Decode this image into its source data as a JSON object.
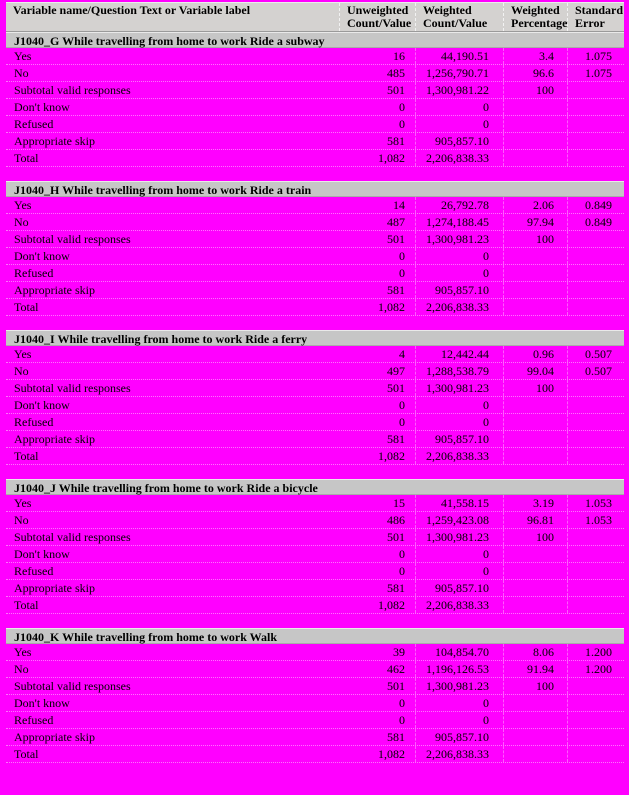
{
  "page": {
    "background_color": "#ff00ff",
    "header_bar_color": "#d4d2d0",
    "section_bar_color": "#c6c6c6",
    "text_color": "#000000"
  },
  "table": {
    "header": {
      "col_label": "Variable name/Question Text or Variable label",
      "columns": [
        {
          "line1": "Unweighted",
          "line2": "Count/Value"
        },
        {
          "line1": "Weighted",
          "line2": "Count/Value"
        },
        {
          "line1": "Weighted",
          "line2": "Percentage"
        },
        {
          "line1": "Standard",
          "line2": "Error"
        }
      ]
    },
    "sections": [
      {
        "variable": "J1040_G",
        "title": "J1040_G While travelling from home to work Ride a subway",
        "rows": [
          {
            "label": "Yes",
            "unweighted": "16",
            "weighted": "44,190.51",
            "percentage": "3.4",
            "stderr": "1.075"
          },
          {
            "label": "No",
            "unweighted": "485",
            "weighted": "1,256,790.71",
            "percentage": "96.6",
            "stderr": "1.075"
          },
          {
            "label": "Subtotal valid responses",
            "unweighted": "501",
            "weighted": "1,300,981.22",
            "percentage": "100",
            "stderr": ""
          },
          {
            "label": "Don't know",
            "unweighted": "0",
            "weighted": "0",
            "percentage": "",
            "stderr": ""
          },
          {
            "label": "Refused",
            "unweighted": "0",
            "weighted": "0",
            "percentage": "",
            "stderr": ""
          },
          {
            "label": "Appropriate skip",
            "unweighted": "581",
            "weighted": "905,857.10",
            "percentage": "",
            "stderr": ""
          },
          {
            "label": "Total",
            "unweighted": "1,082",
            "weighted": "2,206,838.33",
            "percentage": "",
            "stderr": ""
          }
        ]
      },
      {
        "variable": "J1040_H",
        "title": "J1040_H While travelling from home to work Ride a train",
        "rows": [
          {
            "label": "Yes",
            "unweighted": "14",
            "weighted": "26,792.78",
            "percentage": "2.06",
            "stderr": "0.849"
          },
          {
            "label": "No",
            "unweighted": "487",
            "weighted": "1,274,188.45",
            "percentage": "97.94",
            "stderr": "0.849"
          },
          {
            "label": "Subtotal valid responses",
            "unweighted": "501",
            "weighted": "1,300,981.23",
            "percentage": "100",
            "stderr": ""
          },
          {
            "label": "Don't know",
            "unweighted": "0",
            "weighted": "0",
            "percentage": "",
            "stderr": ""
          },
          {
            "label": "Refused",
            "unweighted": "0",
            "weighted": "0",
            "percentage": "",
            "stderr": ""
          },
          {
            "label": "Appropriate skip",
            "unweighted": "581",
            "weighted": "905,857.10",
            "percentage": "",
            "stderr": ""
          },
          {
            "label": "Total",
            "unweighted": "1,082",
            "weighted": "2,206,838.33",
            "percentage": "",
            "stderr": ""
          }
        ]
      },
      {
        "variable": "J1040_I",
        "title": "J1040_I While travelling from home to work Ride a ferry",
        "rows": [
          {
            "label": "Yes",
            "unweighted": "4",
            "weighted": "12,442.44",
            "percentage": "0.96",
            "stderr": "0.507"
          },
          {
            "label": "No",
            "unweighted": "497",
            "weighted": "1,288,538.79",
            "percentage": "99.04",
            "stderr": "0.507"
          },
          {
            "label": "Subtotal valid responses",
            "unweighted": "501",
            "weighted": "1,300,981.23",
            "percentage": "100",
            "stderr": ""
          },
          {
            "label": "Don't know",
            "unweighted": "0",
            "weighted": "0",
            "percentage": "",
            "stderr": ""
          },
          {
            "label": "Refused",
            "unweighted": "0",
            "weighted": "0",
            "percentage": "",
            "stderr": ""
          },
          {
            "label": "Appropriate skip",
            "unweighted": "581",
            "weighted": "905,857.10",
            "percentage": "",
            "stderr": ""
          },
          {
            "label": "Total",
            "unweighted": "1,082",
            "weighted": "2,206,838.33",
            "percentage": "",
            "stderr": ""
          }
        ]
      },
      {
        "variable": "J1040_J",
        "title": "J1040_J While travelling from home to work Ride a bicycle",
        "rows": [
          {
            "label": "Yes",
            "unweighted": "15",
            "weighted": "41,558.15",
            "percentage": "3.19",
            "stderr": "1.053"
          },
          {
            "label": "No",
            "unweighted": "486",
            "weighted": "1,259,423.08",
            "percentage": "96.81",
            "stderr": "1.053"
          },
          {
            "label": "Subtotal valid responses",
            "unweighted": "501",
            "weighted": "1,300,981.23",
            "percentage": "100",
            "stderr": ""
          },
          {
            "label": "Don't know",
            "unweighted": "0",
            "weighted": "0",
            "percentage": "",
            "stderr": ""
          },
          {
            "label": "Refused",
            "unweighted": "0",
            "weighted": "0",
            "percentage": "",
            "stderr": ""
          },
          {
            "label": "Appropriate skip",
            "unweighted": "581",
            "weighted": "905,857.10",
            "percentage": "",
            "stderr": ""
          },
          {
            "label": "Total",
            "unweighted": "1,082",
            "weighted": "2,206,838.33",
            "percentage": "",
            "stderr": ""
          }
        ]
      },
      {
        "variable": "J1040_K",
        "title": "J1040_K While travelling from home to work Walk",
        "rows": [
          {
            "label": "Yes",
            "unweighted": "39",
            "weighted": "104,854.70",
            "percentage": "8.06",
            "stderr": "1.200"
          },
          {
            "label": "No",
            "unweighted": "462",
            "weighted": "1,196,126.53",
            "percentage": "91.94",
            "stderr": "1.200"
          },
          {
            "label": "Subtotal valid responses",
            "unweighted": "501",
            "weighted": "1,300,981.23",
            "percentage": "100",
            "stderr": ""
          },
          {
            "label": "Don't know",
            "unweighted": "0",
            "weighted": "0",
            "percentage": "",
            "stderr": ""
          },
          {
            "label": "Refused",
            "unweighted": "0",
            "weighted": "0",
            "percentage": "",
            "stderr": ""
          },
          {
            "label": "Appropriate skip",
            "unweighted": "581",
            "weighted": "905,857.10",
            "percentage": "",
            "stderr": ""
          },
          {
            "label": "Total",
            "unweighted": "1,082",
            "weighted": "2,206,838.33",
            "percentage": "",
            "stderr": ""
          }
        ]
      }
    ]
  }
}
